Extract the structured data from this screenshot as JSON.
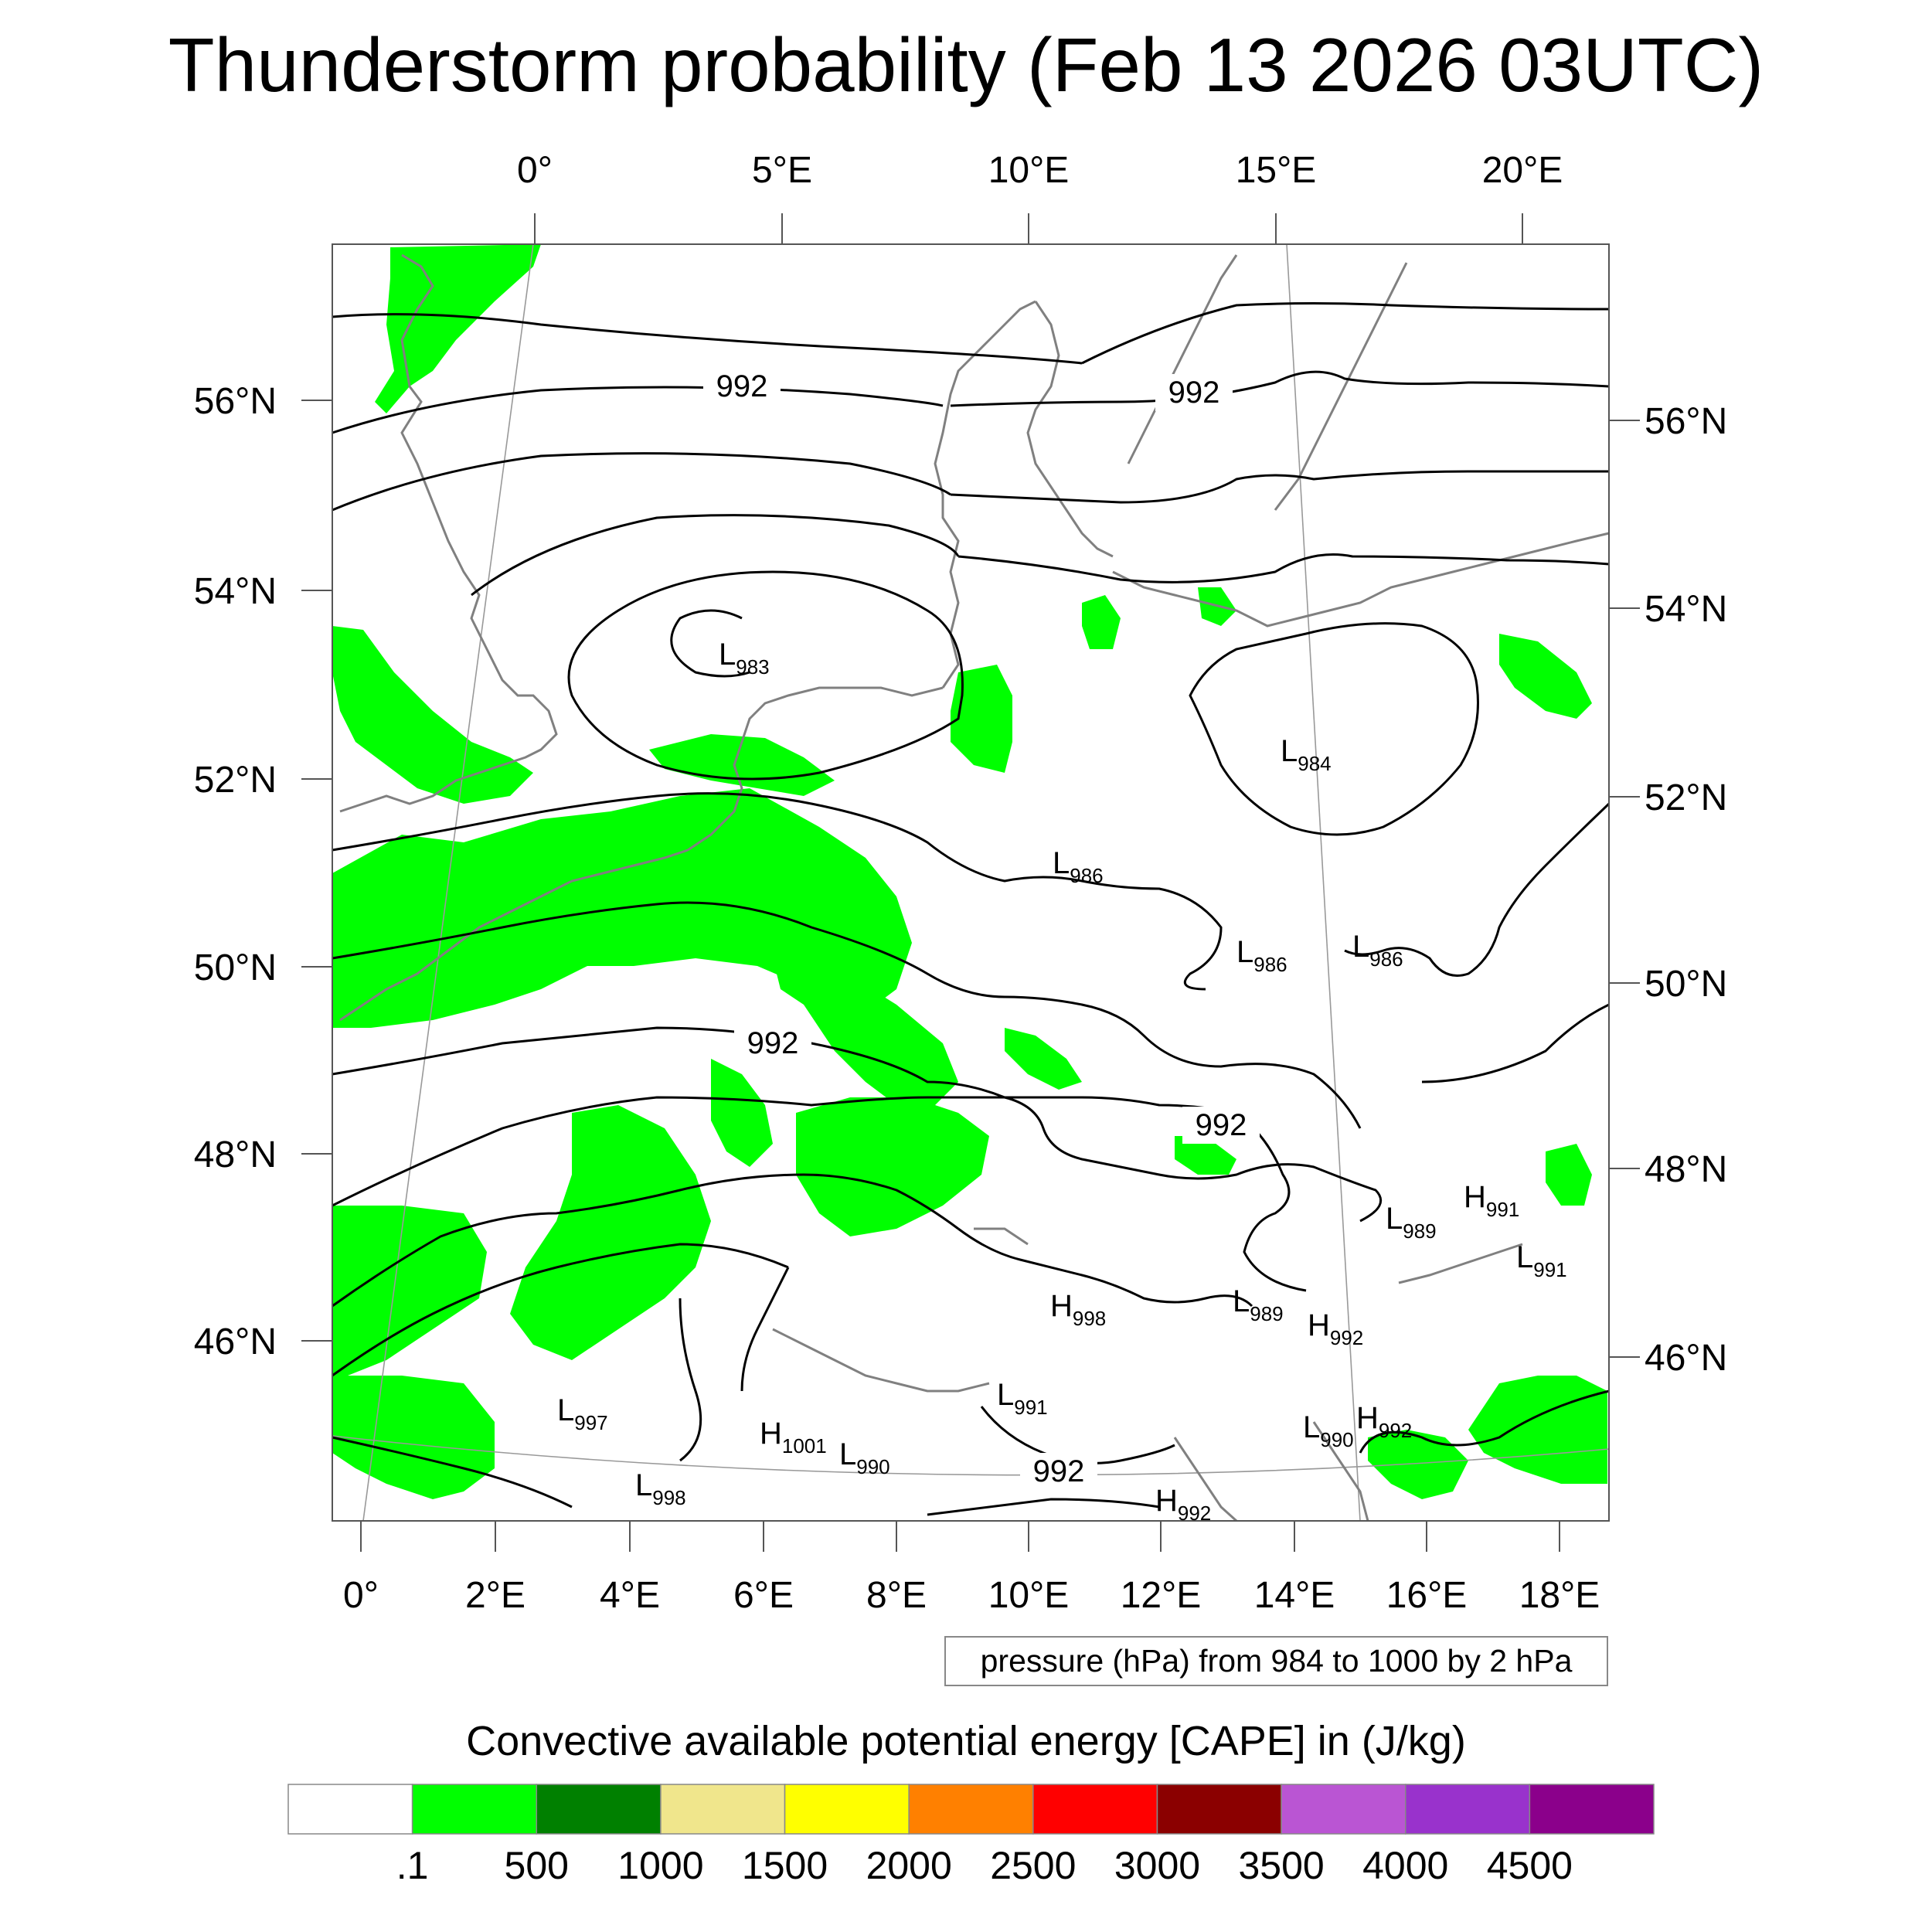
{
  "title": "Thunderstorm probability (Feb 13 2026 03UTC)",
  "top_lon_labels": [
    "0°",
    "5°E",
    "10°E",
    "15°E",
    "20°E"
  ],
  "bottom_lon_labels": [
    "0°",
    "2°E",
    "4°E",
    "6°E",
    "8°E",
    "10°E",
    "12°E",
    "14°E",
    "16°E",
    "18°E"
  ],
  "left_lat_labels": [
    "56°N",
    "54°N",
    "52°N",
    "50°N",
    "48°N",
    "46°N"
  ],
  "right_lat_labels": [
    "56°N",
    "54°N",
    "52°N",
    "50°N",
    "48°N",
    "46°N"
  ],
  "contour_labels": [
    "992",
    "992",
    "992",
    "992",
    "992"
  ],
  "pressure_centers": [
    {
      "type": "L",
      "value": "983"
    },
    {
      "type": "L",
      "value": "984"
    },
    {
      "type": "L",
      "value": "986"
    },
    {
      "type": "L",
      "value": "986"
    },
    {
      "type": "L",
      "value": "986"
    },
    {
      "type": "L",
      "value": "989"
    },
    {
      "type": "H",
      "value": "991"
    },
    {
      "type": "L",
      "value": "991"
    },
    {
      "type": "H",
      "value": "998"
    },
    {
      "type": "L",
      "value": "989"
    },
    {
      "type": "H",
      "value": "992"
    },
    {
      "type": "L",
      "value": "997"
    },
    {
      "type": "L",
      "value": "991"
    },
    {
      "type": "H",
      "value": "1001"
    },
    {
      "type": "L",
      "value": "990"
    },
    {
      "type": "L",
      "value": "998"
    },
    {
      "type": "L",
      "value": "990"
    },
    {
      "type": "H",
      "value": "992"
    },
    {
      "type": "H",
      "value": "992"
    }
  ],
  "pressure_note": "pressure (hPa) from 984 to 1000 by 2 hPa",
  "colorbar": {
    "title": "Convective available potential energy [CAPE] in (J/kg)",
    "colors": [
      "#ffffff",
      "#00ff00",
      "#008000",
      "#f0e68c",
      "#ffff00",
      "#ff8000",
      "#ff0000",
      "#8b0000",
      "#ba55d3",
      "#9932cc",
      "#8b008b"
    ],
    "labels": [
      ".1",
      "500",
      "1000",
      "1500",
      "2000",
      "2500",
      "3000",
      "3500",
      "4000",
      "4500"
    ]
  },
  "colors": {
    "cape_low": "#00ff00",
    "coastline": "#808080",
    "isobar": "#000000"
  }
}
